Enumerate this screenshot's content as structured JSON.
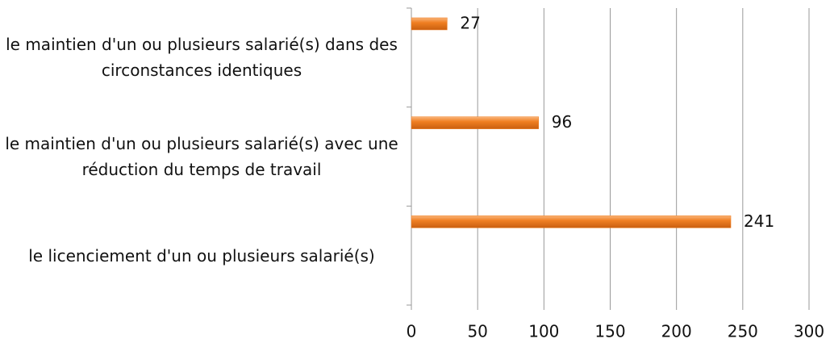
{
  "chart_data": {
    "type": "bar",
    "orientation": "horizontal",
    "categories": [
      "le maintien d'un ou plusieurs salarié(s) dans des circonstances identiques",
      "le maintien d'un ou plusieurs salarié(s) avec une réduction du temps de travail",
      "le licenciement d'un ou plusieurs salarié(s)"
    ],
    "values": [
      27,
      96,
      241
    ],
    "color": "#f07f22",
    "xlim": [
      0,
      300
    ],
    "xticks": [
      0,
      50,
      100,
      150,
      200,
      250,
      300
    ],
    "grid": true
  }
}
